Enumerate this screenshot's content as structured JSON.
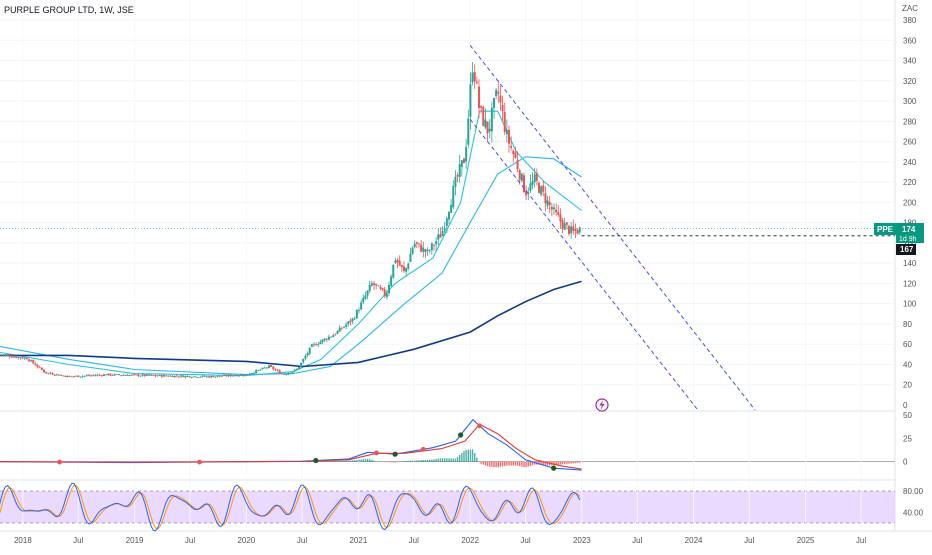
{
  "header": {
    "symbol_title": "PURPLE GROUP LTD, 1W, JSE"
  },
  "colors": {
    "up": "#26a69a",
    "down": "#ef5350",
    "ma_fast": "#26c6da",
    "ma_mid": "#29b6f6",
    "ma_slow": "#0d3b8c",
    "channel": "#3f51f5",
    "macd_line": "#2962ff",
    "signal_line": "#e53935",
    "stoch_k": "#2962ff",
    "stoch_d": "#ff9800",
    "stoch_band": "#e8d4ff",
    "price_badge": "#089981",
    "event_icon": "#9c27b0"
  },
  "chart_data": [
    {
      "type": "candlestick",
      "title": "PURPLE GROUP LTD, 1W, JSE",
      "unit": "ZAC",
      "ylim": [
        0,
        380
      ],
      "y_ticks": [
        0,
        20,
        40,
        60,
        80,
        100,
        120,
        140,
        160,
        180,
        200,
        220,
        240,
        260,
        280,
        300,
        320,
        340,
        360,
        380
      ],
      "x_range": [
        "2017-10-15",
        "2025-10-20"
      ],
      "x_ticks": [
        {
          "date": "2018-01-01",
          "label": "2018"
        },
        {
          "date": "2018-07-01",
          "label": "Jul"
        },
        {
          "date": "2019-01-01",
          "label": "2019"
        },
        {
          "date": "2019-07-01",
          "label": "Jul"
        },
        {
          "date": "2020-01-01",
          "label": "2020"
        },
        {
          "date": "2020-07-01",
          "label": "Jul"
        },
        {
          "date": "2021-01-01",
          "label": "2021"
        },
        {
          "date": "2021-07-01",
          "label": "Jul"
        },
        {
          "date": "2022-01-01",
          "label": "2022"
        },
        {
          "date": "2022-07-01",
          "label": "Jul"
        },
        {
          "date": "2023-01-01",
          "label": "2023"
        },
        {
          "date": "2023-07-01",
          "label": "Jul"
        },
        {
          "date": "2024-01-01",
          "label": "2024"
        },
        {
          "date": "2024-07-01",
          "label": "Jul"
        },
        {
          "date": "2025-01-01",
          "label": "2025"
        },
        {
          "date": "2025-07-01",
          "label": "Jul"
        }
      ],
      "price_path": [
        [
          "2017-10-15",
          50
        ],
        [
          "2018-01-15",
          46
        ],
        [
          "2018-03-15",
          32
        ],
        [
          "2018-06-01",
          28
        ],
        [
          "2018-10-01",
          30
        ],
        [
          "2019-03-01",
          29
        ],
        [
          "2019-09-01",
          28
        ],
        [
          "2020-01-01",
          30
        ],
        [
          "2020-03-15",
          38
        ],
        [
          "2020-05-01",
          30
        ],
        [
          "2020-06-15",
          35
        ],
        [
          "2020-08-01",
          58
        ],
        [
          "2020-10-15",
          70
        ],
        [
          "2020-12-15",
          85
        ],
        [
          "2021-02-15",
          120
        ],
        [
          "2021-04-01",
          108
        ],
        [
          "2021-05-01",
          145
        ],
        [
          "2021-06-01",
          130
        ],
        [
          "2021-07-01",
          160
        ],
        [
          "2021-08-15",
          150
        ],
        [
          "2021-10-01",
          170
        ],
        [
          "2021-11-15",
          220
        ],
        [
          "2021-12-15",
          245
        ],
        [
          "2022-01-10",
          340
        ],
        [
          "2022-02-01",
          290
        ],
        [
          "2022-03-01",
          270
        ],
        [
          "2022-04-01",
          310
        ],
        [
          "2022-05-01",
          265
        ],
        [
          "2022-06-01",
          240
        ],
        [
          "2022-07-01",
          210
        ],
        [
          "2022-08-01",
          222
        ],
        [
          "2022-09-01",
          205
        ],
        [
          "2022-10-01",
          190
        ],
        [
          "2022-11-01",
          178
        ],
        [
          "2022-12-01",
          170
        ],
        [
          "2022-12-31",
          174
        ]
      ],
      "moving_averages": [
        {
          "color_key": "ma_fast",
          "points": [
            [
              "2017-10-15",
              52
            ],
            [
              "2018-06-01",
              40
            ],
            [
              "2019-01-01",
              31
            ],
            [
              "2020-01-01",
              29
            ],
            [
              "2020-06-01",
              33
            ],
            [
              "2020-09-01",
              45
            ],
            [
              "2021-01-01",
              80
            ],
            [
              "2021-05-01",
              120
            ],
            [
              "2021-09-01",
              145
            ],
            [
              "2021-12-01",
              200
            ],
            [
              "2022-02-01",
              290
            ],
            [
              "2022-04-01",
              290
            ],
            [
              "2022-06-01",
              250
            ],
            [
              "2022-09-01",
              220
            ],
            [
              "2022-12-31",
              192
            ]
          ]
        },
        {
          "color_key": "ma_mid",
          "points": [
            [
              "2017-10-15",
              58
            ],
            [
              "2018-06-01",
              45
            ],
            [
              "2019-01-01",
              35
            ],
            [
              "2020-01-01",
              30
            ],
            [
              "2020-06-01",
              31
            ],
            [
              "2020-10-01",
              38
            ],
            [
              "2021-01-01",
              60
            ],
            [
              "2021-06-01",
              100
            ],
            [
              "2021-10-01",
              130
            ],
            [
              "2022-01-01",
              180
            ],
            [
              "2022-04-01",
              228
            ],
            [
              "2022-07-01",
              245
            ],
            [
              "2022-10-01",
              243
            ],
            [
              "2022-12-31",
              225
            ]
          ]
        },
        {
          "color_key": "ma_slow",
          "points": [
            [
              "2017-10-15",
              49
            ],
            [
              "2018-06-01",
              49
            ],
            [
              "2019-01-01",
              46
            ],
            [
              "2020-01-01",
              43
            ],
            [
              "2020-07-01",
              38
            ],
            [
              "2021-01-01",
              42
            ],
            [
              "2021-07-01",
              55
            ],
            [
              "2022-01-01",
              72
            ],
            [
              "2022-04-01",
              88
            ],
            [
              "2022-07-01",
              102
            ],
            [
              "2022-10-01",
              114
            ],
            [
              "2022-12-31",
              122
            ]
          ]
        }
      ],
      "channel_lines": [
        {
          "from": [
            "2022-01-01",
            355
          ],
          "to": [
            "2024-07-20",
            -5
          ]
        },
        {
          "from": [
            "2022-01-01",
            282
          ],
          "to": [
            "2024-01-15",
            -5
          ]
        }
      ],
      "current_price_line": 167,
      "last_price_line": 174,
      "price_badge": {
        "symbol": "PPE",
        "price": "174",
        "countdown": "1d 9h",
        "prev_close": "167"
      }
    },
    {
      "type": "line",
      "panel": "macd",
      "ylim": [
        -10,
        50
      ],
      "y_ticks": [
        {
          "value": 0,
          "label": "0"
        },
        {
          "value": 25,
          "label": "25"
        },
        {
          "value": 50,
          "label": "50"
        }
      ],
      "macd": [
        [
          "2017-10-15",
          0
        ],
        [
          "2019-01-01",
          -1
        ],
        [
          "2020-07-01",
          0.5
        ],
        [
          "2020-12-01",
          3
        ],
        [
          "2021-02-01",
          10
        ],
        [
          "2021-05-01",
          8
        ],
        [
          "2021-09-01",
          15
        ],
        [
          "2021-11-15",
          22
        ],
        [
          "2022-01-10",
          45
        ],
        [
          "2022-03-01",
          30
        ],
        [
          "2022-05-01",
          18
        ],
        [
          "2022-07-01",
          2
        ],
        [
          "2022-10-01",
          -7
        ],
        [
          "2022-12-31",
          -9
        ]
      ],
      "signal": [
        [
          "2017-10-15",
          0
        ],
        [
          "2019-01-01",
          -0.5
        ],
        [
          "2020-07-01",
          0.2
        ],
        [
          "2020-12-01",
          2
        ],
        [
          "2021-03-01",
          9
        ],
        [
          "2021-06-01",
          9
        ],
        [
          "2021-10-01",
          14
        ],
        [
          "2021-12-15",
          22
        ],
        [
          "2022-02-01",
          40
        ],
        [
          "2022-04-01",
          30
        ],
        [
          "2022-06-01",
          14
        ],
        [
          "2022-08-01",
          2
        ],
        [
          "2022-11-01",
          -5
        ],
        [
          "2022-12-31",
          -8
        ]
      ],
      "cross_markers_up": [
        "2020-08-15",
        "2021-05-01",
        "2021-12-01",
        "2022-10-01"
      ],
      "cross_markers_down": [
        "2018-05-01",
        "2019-08-01",
        "2021-03-01",
        "2021-08-01",
        "2022-02-01"
      ]
    },
    {
      "type": "line",
      "panel": "stochastic",
      "ylim": [
        0,
        100
      ],
      "band": [
        20,
        80
      ],
      "y_ticks": [
        {
          "value": 80,
          "label": "80.00"
        },
        {
          "value": 40,
          "label": "40.00"
        }
      ]
    }
  ]
}
